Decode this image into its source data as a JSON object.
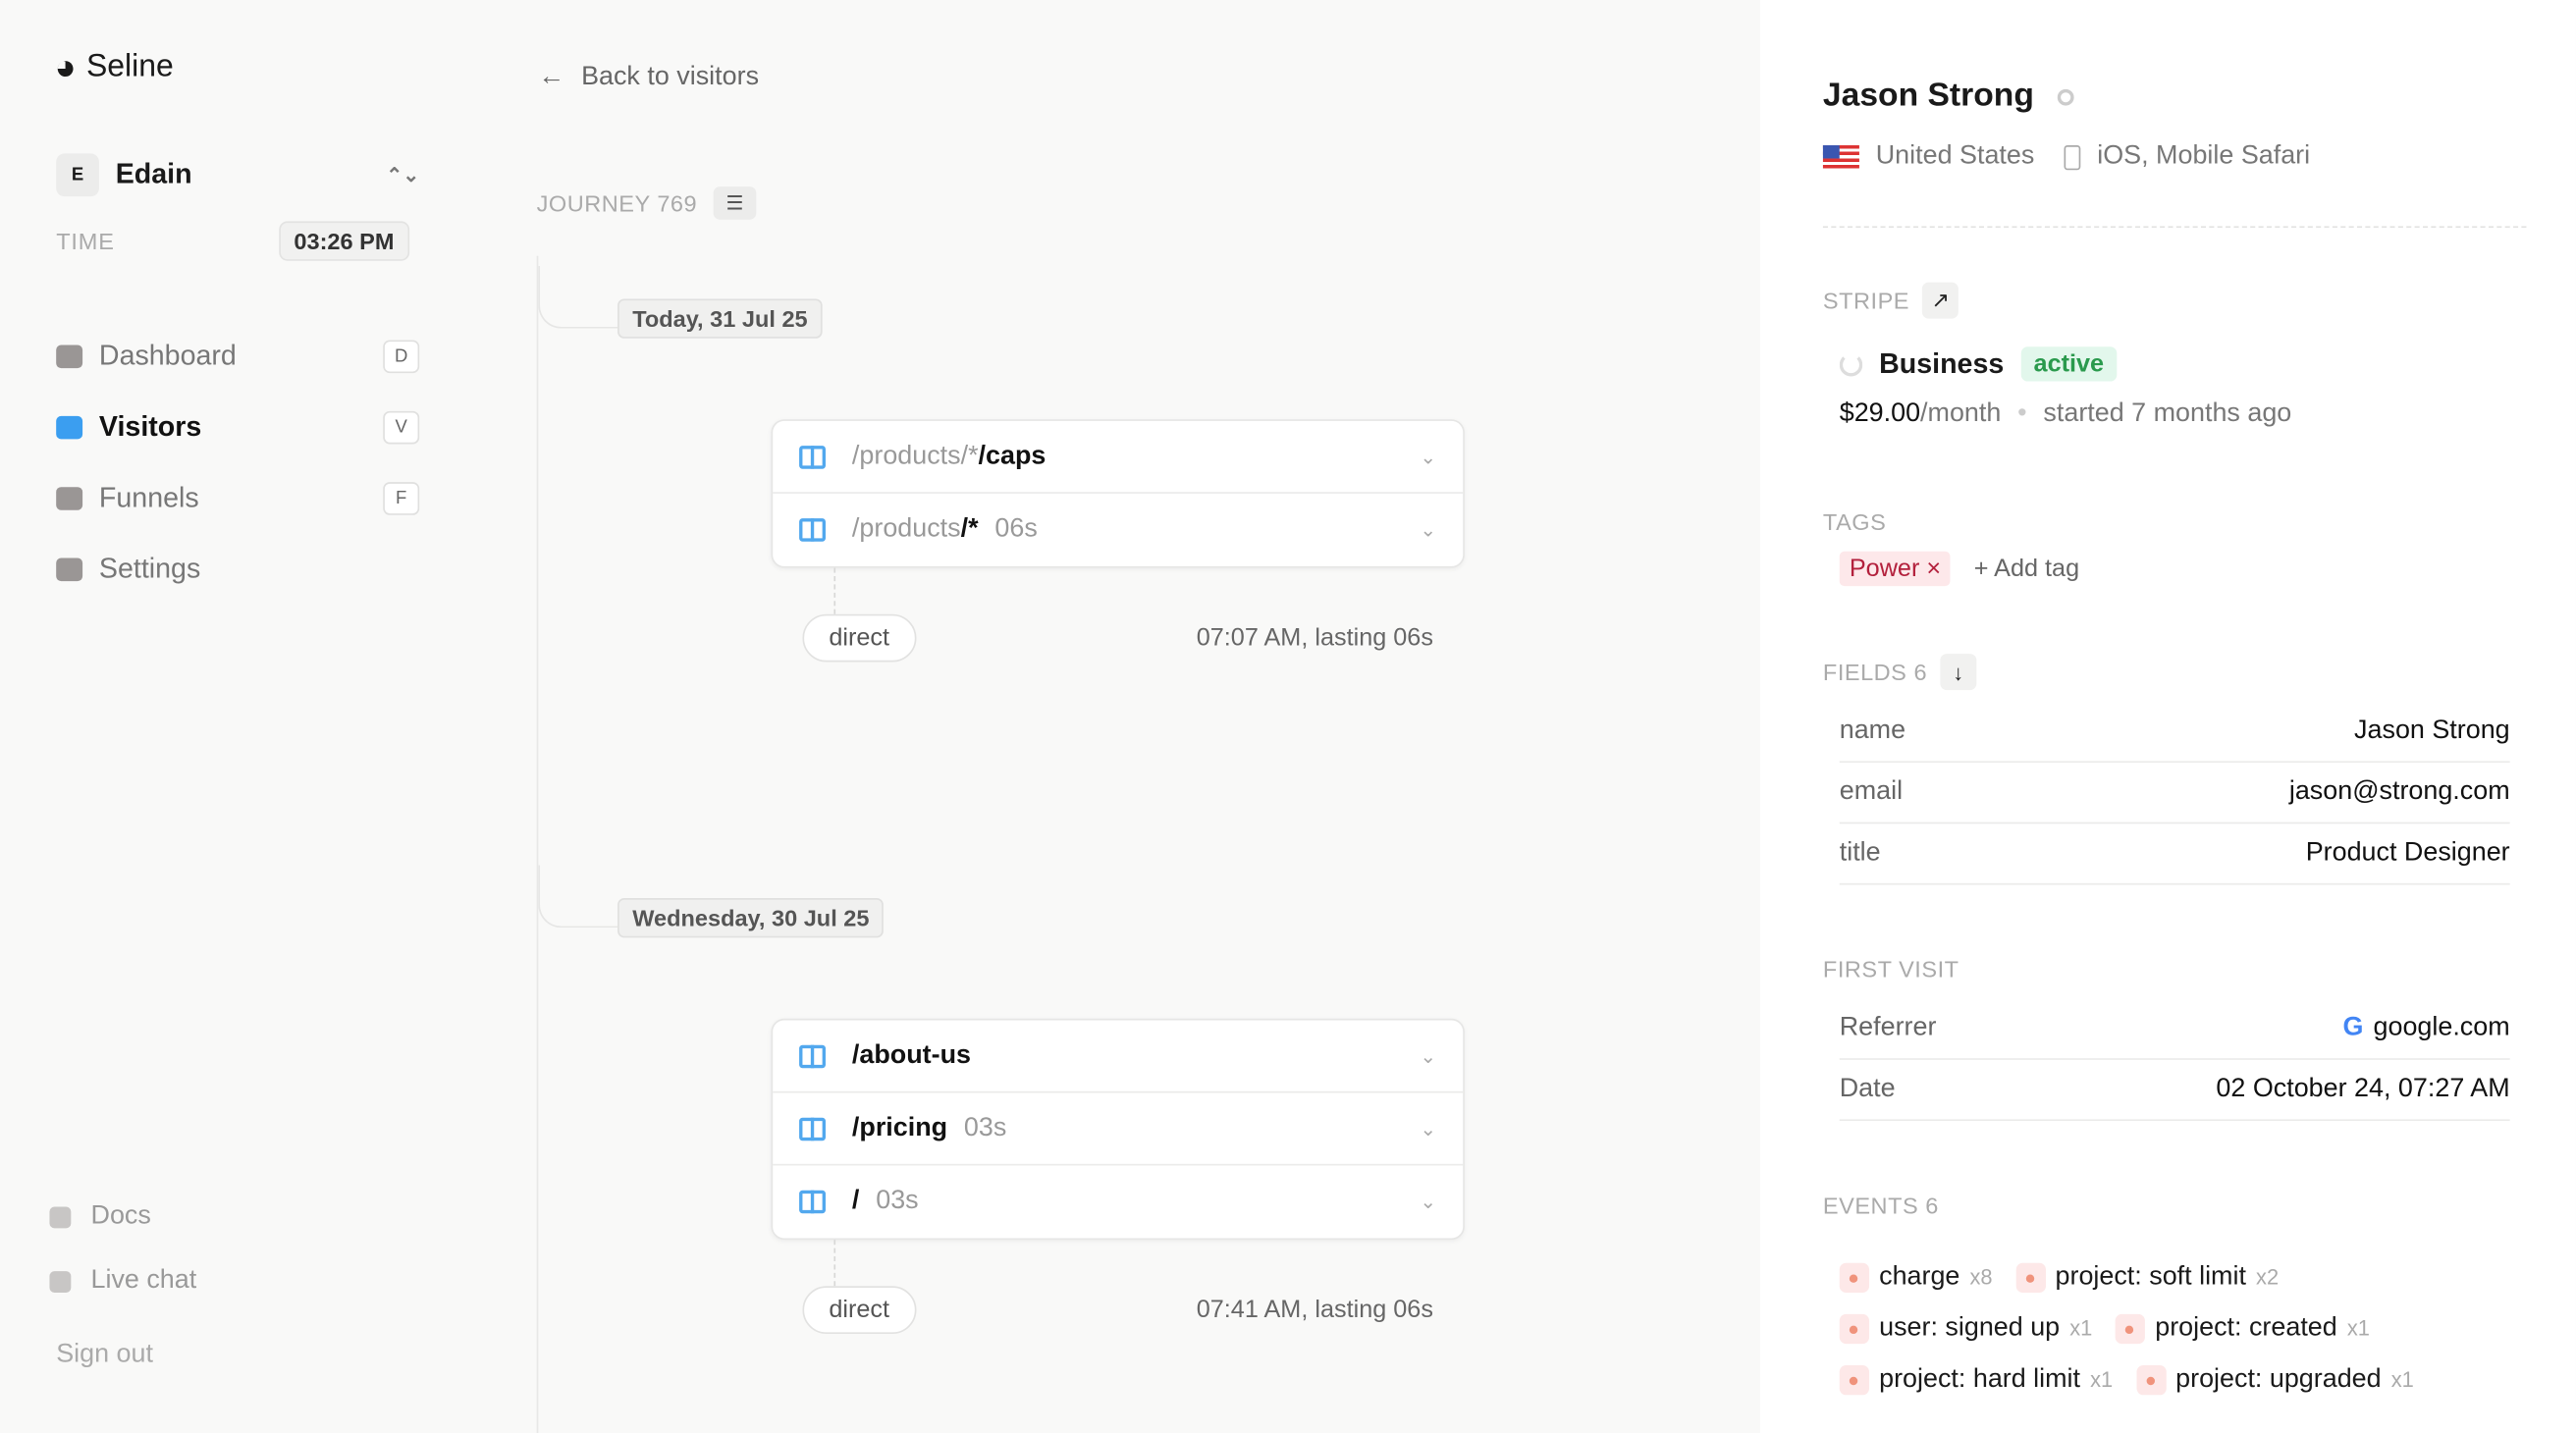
{
  "sidebar": {
    "brand": "Seline",
    "workspace": "Edain",
    "time_label": "TIME",
    "time_value": "03:26 PM",
    "nav": [
      {
        "label": "Dashboard",
        "key": "D",
        "icon": "dashboard-icon"
      },
      {
        "label": "Visitors",
        "key": "V",
        "icon": "visitors-icon",
        "active": true
      },
      {
        "label": "Funnels",
        "key": "F",
        "icon": "funnels-icon"
      },
      {
        "label": "Settings",
        "key": "",
        "icon": "settings-icon"
      }
    ],
    "bottom": [
      {
        "label": "Docs",
        "icon": "docs-icon"
      },
      {
        "label": "Live chat",
        "icon": "chat-icon"
      }
    ],
    "sign_out": "Sign out"
  },
  "main": {
    "back": "Back to visitors",
    "journey": "JOURNEY 769",
    "sessions": [
      {
        "date": "Today, 31 Jul 25",
        "pages": [
          {
            "prefix": "/products/*",
            "bold": "/caps",
            "dur": ""
          },
          {
            "prefix": "/products",
            "bold": "/*",
            "dur": "06s"
          }
        ],
        "source": "direct",
        "at": "07:07 AM, lasting 06s"
      },
      {
        "date": "Wednesday, 30 Jul 25",
        "pages": [
          {
            "prefix": "",
            "bold": "/about-us",
            "dur": ""
          },
          {
            "prefix": "",
            "bold": "/pricing",
            "dur": "03s"
          },
          {
            "prefix": "",
            "bold": "/",
            "dur": "03s"
          }
        ],
        "source": "direct",
        "at": "07:41 AM, lasting 06s"
      }
    ]
  },
  "profile": {
    "name": "Jason Strong",
    "country": "United States",
    "device": "iOS, Mobile Safari",
    "stripe": {
      "label": "STRIPE",
      "plan": "Business",
      "status": "active",
      "price": "$29.00",
      "period": "/month",
      "started": "started 7 months ago",
      "status_color": "#2a9a4d"
    },
    "tags": {
      "label": "TAGS",
      "items": [
        "Power"
      ],
      "add": "Add tag"
    },
    "fields": {
      "label": "FIELDS 6",
      "rows": [
        {
          "k": "name",
          "v": "Jason Strong"
        },
        {
          "k": "email",
          "v": "jason@strong.com"
        },
        {
          "k": "title",
          "v": "Product Designer"
        }
      ]
    },
    "first_visit": {
      "label": "FIRST VISIT",
      "rows": [
        {
          "k": "Referrer",
          "v": "google.com"
        },
        {
          "k": "Date",
          "v": "02 October 24, 07:27 AM"
        }
      ]
    },
    "events": {
      "label": "EVENTS 6",
      "rows": [
        [
          {
            "n": "charge",
            "c": "x8"
          },
          {
            "n": "project: soft limit",
            "c": "x2"
          }
        ],
        [
          {
            "n": "user: signed up",
            "c": "x1"
          },
          {
            "n": "project: created",
            "c": "x1"
          }
        ],
        [
          {
            "n": "project: hard limit",
            "c": "x1"
          },
          {
            "n": "project: upgraded",
            "c": "x1"
          }
        ]
      ]
    }
  }
}
